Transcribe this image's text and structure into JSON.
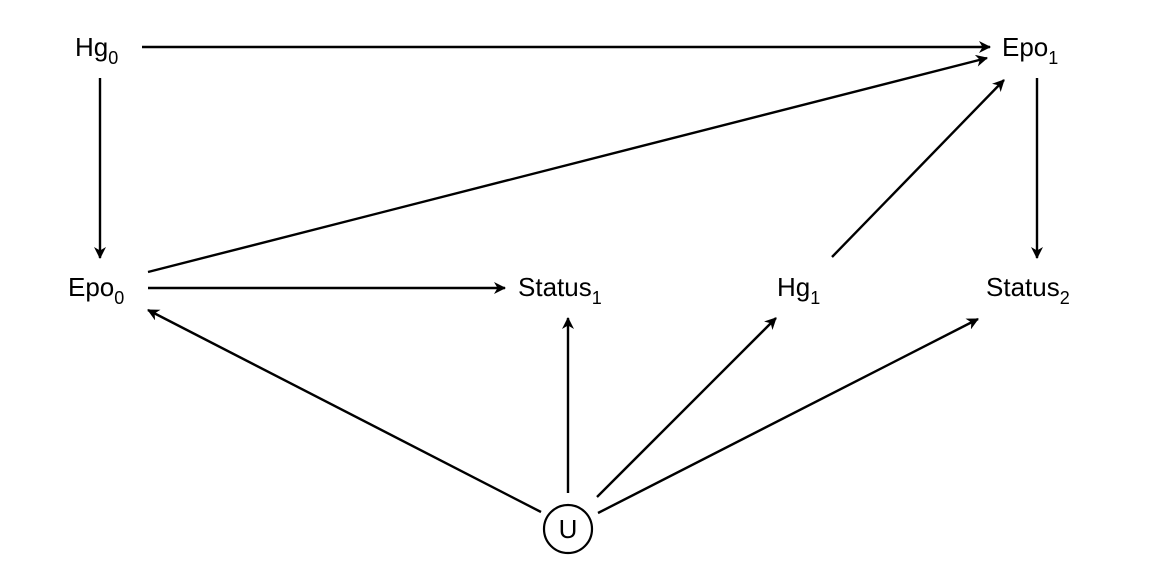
{
  "diagram": {
    "nodes": [
      {
        "id": "hg0",
        "main": "Hg",
        "sub": "0"
      },
      {
        "id": "epo1",
        "main": "Epo",
        "sub": "1"
      },
      {
        "id": "epo0",
        "main": "Epo",
        "sub": "0"
      },
      {
        "id": "status1",
        "main": "Status",
        "sub": "1"
      },
      {
        "id": "hg1",
        "main": "Hg",
        "sub": "1"
      },
      {
        "id": "status2",
        "main": "Status",
        "sub": "2"
      },
      {
        "id": "u",
        "main": "U",
        "sub": "",
        "circled": true
      }
    ],
    "edges": [
      {
        "from": "hg0",
        "to": "epo1"
      },
      {
        "from": "hg0",
        "to": "epo0"
      },
      {
        "from": "epo0",
        "to": "epo1"
      },
      {
        "from": "epo0",
        "to": "status1"
      },
      {
        "from": "hg1",
        "to": "epo1"
      },
      {
        "from": "epo1",
        "to": "status2"
      },
      {
        "from": "u",
        "to": "epo0"
      },
      {
        "from": "u",
        "to": "status1"
      },
      {
        "from": "u",
        "to": "hg1"
      },
      {
        "from": "u",
        "to": "status2"
      }
    ]
  }
}
